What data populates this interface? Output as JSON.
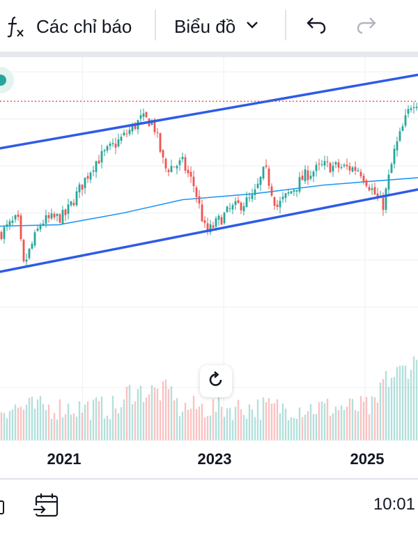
{
  "toolbar": {
    "indicators_label": "Các chỉ báo",
    "chart_type_label": "Biểu đồ"
  },
  "bottom_bar": {
    "time": "10:01"
  },
  "icons": [
    "function-icon",
    "chevron-down-icon",
    "undo-icon",
    "redo-icon",
    "reset-chart-icon",
    "go-to-date-icon"
  ],
  "colors": {
    "up": "#26a69a",
    "down": "#ef5350",
    "channel": "#2e5be6",
    "moving_average": "#2196f3",
    "price_line": "#e53935"
  },
  "chart_data": {
    "type": "candlestick",
    "x_tick_labels": [
      "2021",
      "2023",
      "2025"
    ],
    "x_range": [
      "2019-11",
      "2025-10"
    ],
    "close_anchors": [
      {
        "date": "2019-11",
        "close": 5.4
      },
      {
        "date": "2020-02",
        "close": 5.9
      },
      {
        "date": "2020-03",
        "close": 4.3
      },
      {
        "date": "2020-06",
        "close": 5.8
      },
      {
        "date": "2020-10",
        "close": 6.0
      },
      {
        "date": "2021-03",
        "close": 7.8
      },
      {
        "date": "2021-08",
        "close": 8.7
      },
      {
        "date": "2021-11",
        "close": 9.3
      },
      {
        "date": "2022-01",
        "close": 9.2
      },
      {
        "date": "2022-03",
        "close": 7.6
      },
      {
        "date": "2022-06",
        "close": 7.8
      },
      {
        "date": "2022-08",
        "close": 7.0
      },
      {
        "date": "2022-10",
        "close": 5.4
      },
      {
        "date": "2023-02",
        "close": 6.2
      },
      {
        "date": "2023-06",
        "close": 6.6
      },
      {
        "date": "2023-08",
        "close": 7.6
      },
      {
        "date": "2023-10",
        "close": 6.3
      },
      {
        "date": "2024-03",
        "close": 7.4
      },
      {
        "date": "2024-06",
        "close": 7.7
      },
      {
        "date": "2024-12",
        "close": 7.6
      },
      {
        "date": "2025-04",
        "close": 6.3
      },
      {
        "date": "2025-06",
        "close": 8.2
      },
      {
        "date": "2025-09",
        "close": 9.9
      }
    ],
    "channel": {
      "upper": [
        {
          "date": "2019-11",
          "value": 8.3
        },
        {
          "date": "2025-10",
          "value": 10.8
        }
      ],
      "lower": [
        {
          "date": "2019-11",
          "value": 4.1
        },
        {
          "date": "2025-10",
          "value": 6.9
        }
      ]
    },
    "moving_average": [
      {
        "date": "2019-11",
        "value": 5.65
      },
      {
        "date": "2020-09",
        "value": 5.7
      },
      {
        "date": "2021-08",
        "value": 6.1
      },
      {
        "date": "2022-06",
        "value": 6.55
      },
      {
        "date": "2023-06",
        "value": 6.75
      },
      {
        "date": "2024-06",
        "value": 7.05
      },
      {
        "date": "2025-10",
        "value": 7.3
      }
    ],
    "last_price_line": 9.9,
    "y_range": [
      2.2,
      11.4
    ],
    "volume_range": [
      0,
      100
    ],
    "grid": true,
    "volume": true
  }
}
